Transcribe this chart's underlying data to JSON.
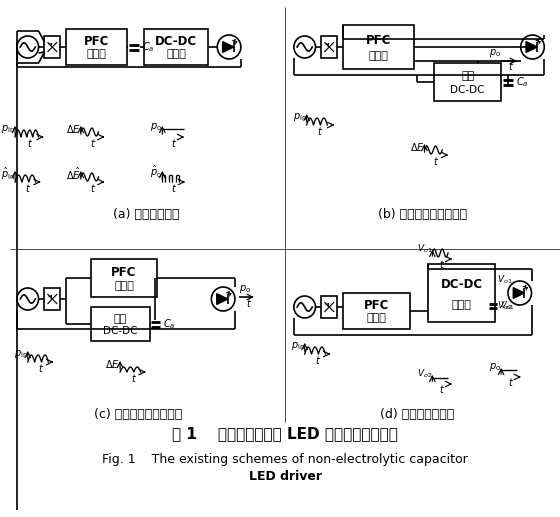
{
  "sub_a": "(a) 优化控制策略",
  "sub_b": "(b) 并联双向变换器拓扑",
  "sub_c": "(c) 并联双向变换器拓扑",
  "sub_d": "(d) 多端口输出拓扑",
  "title_cn": "图 1    现有无电解电容 LED 驱动电源技术方案",
  "title_en": "Fig. 1    The existing schemes of non-electrolytic capacitor",
  "title_en2": "LED driver",
  "lw": 1.2,
  "bg": "#ffffff"
}
